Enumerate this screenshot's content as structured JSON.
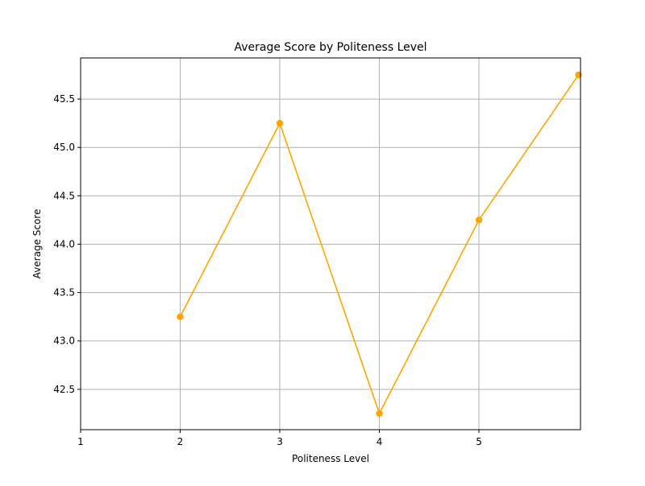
{
  "chart_data": {
    "type": "line",
    "title": "Average Score by Politeness Level",
    "xlabel": "Politeness Level",
    "ylabel": "Average Score",
    "x": [
      2,
      3,
      4,
      5,
      6
    ],
    "series": [
      {
        "values": [
          43.25,
          45.25,
          42.25,
          44.25,
          45.75
        ],
        "color": "#ffa500",
        "marker": "circle"
      }
    ],
    "xlim": [
      1,
      6.02
    ],
    "ylim": [
      42.083,
      45.925
    ],
    "xticks": [
      1,
      2,
      3,
      4,
      5
    ],
    "xtick_labels": [
      "1",
      "2",
      "3",
      "4",
      "5"
    ],
    "yticks": [
      42.5,
      43.0,
      43.5,
      44.0,
      44.5,
      45.0,
      45.5
    ],
    "ytick_labels": [
      "42.5",
      "43.0",
      "43.5",
      "44.0",
      "44.5",
      "45.0",
      "45.5"
    ],
    "grid": true
  }
}
